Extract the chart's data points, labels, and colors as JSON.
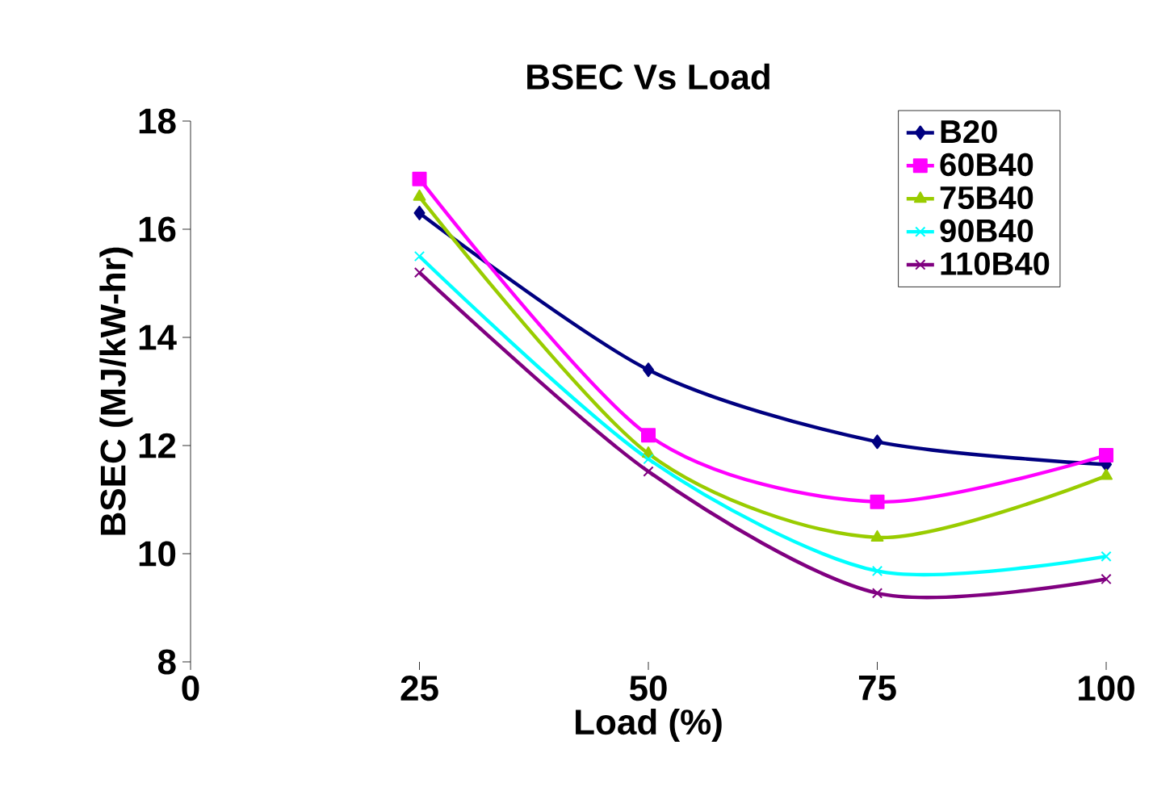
{
  "chart_data": {
    "type": "line",
    "title": "BSEC Vs Load",
    "xlabel": "Load (%)",
    "ylabel": "BSEC (MJ/kW-hr)",
    "x": [
      25,
      50,
      75,
      100
    ],
    "series": [
      {
        "name": "B20",
        "color": "#000080",
        "marker": "diamond",
        "values": [
          16.3,
          13.4,
          12.07,
          11.65
        ]
      },
      {
        "name": "60B40",
        "color": "#ff00ff",
        "marker": "square",
        "values": [
          16.93,
          12.19,
          10.96,
          11.82
        ]
      },
      {
        "name": "75B40",
        "color": "#99cc00",
        "marker": "triangle",
        "values": [
          16.6,
          11.85,
          10.3,
          11.44
        ]
      },
      {
        "name": "90B40",
        "color": "#00ffff",
        "marker": "cross",
        "values": [
          15.5,
          11.75,
          9.68,
          9.95
        ]
      },
      {
        "name": "110B40",
        "color": "#800080",
        "marker": "cross",
        "values": [
          15.2,
          11.52,
          9.27,
          9.53
        ]
      }
    ],
    "xlim": [
      0,
      100
    ],
    "xticks": [
      0,
      25,
      50,
      75,
      100
    ],
    "ylim": [
      8,
      18
    ],
    "yticks": [
      8,
      10,
      12,
      14,
      16,
      18
    ],
    "legend": "top right",
    "line_style": "solid"
  }
}
